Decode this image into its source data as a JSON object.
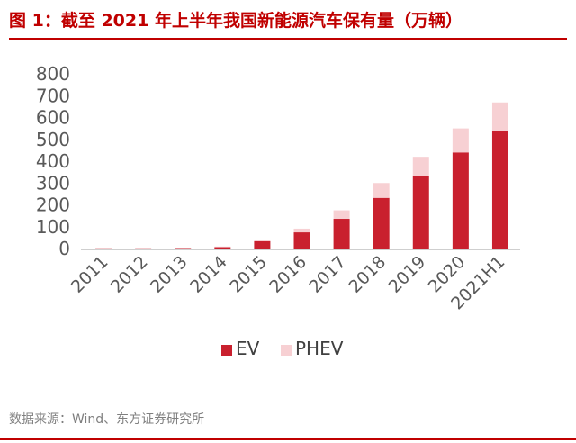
{
  "figure": {
    "title": "图 1：截至 2021 年上半年我国新能源汽车保有量（万辆）",
    "source": "数据来源：Wind、东方证券研究所"
  },
  "colors": {
    "ev": "#c9202e",
    "phev": "#f7d0d3",
    "axis": "#bfbfbf",
    "accent": "#c00000"
  },
  "chart_data": {
    "type": "bar",
    "stacked": true,
    "categories": [
      "2011",
      "2012",
      "2013",
      "2014",
      "2015",
      "2016",
      "2017",
      "2018",
      "2019",
      "2020",
      "2021H1"
    ],
    "series": [
      {
        "name": "EV",
        "values": [
          1,
          1,
          2,
          6,
          33,
          74,
          136,
          232,
          330,
          440,
          539
        ]
      },
      {
        "name": "PHEV",
        "values": [
          0,
          0,
          1,
          3,
          6,
          17,
          39,
          68,
          90,
          110,
          130
        ]
      }
    ],
    "yticks": [
      0,
      100,
      200,
      300,
      400,
      500,
      600,
      700,
      800
    ],
    "ylim": [
      0,
      800
    ],
    "grid": false,
    "legend_position": "bottom-center"
  }
}
